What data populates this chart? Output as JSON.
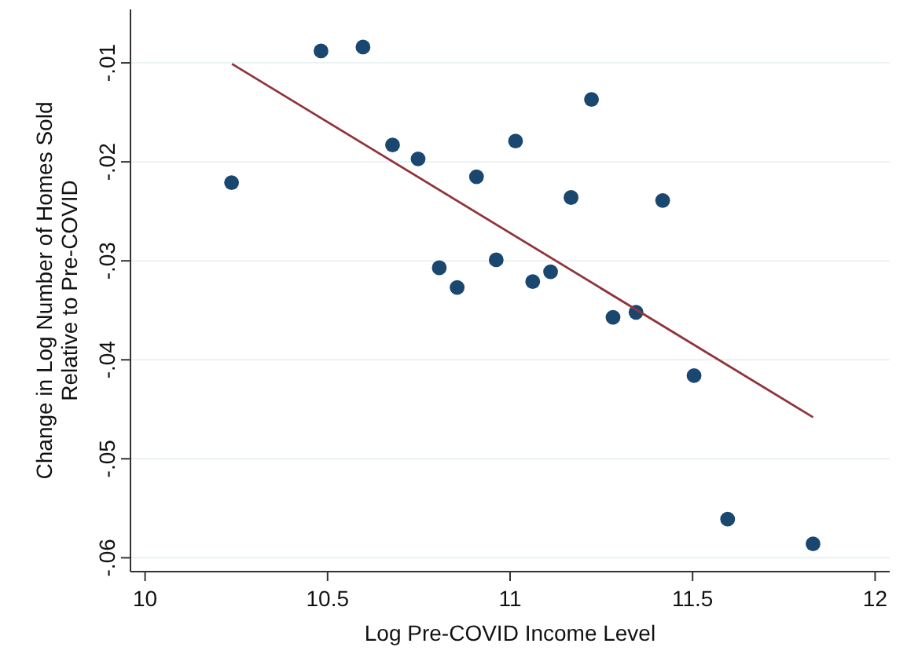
{
  "chart_data": {
    "type": "scatter",
    "xlabel": "Log Pre-COVID Income Level",
    "ylabel": "Change in Log Number of Homes Sold\nRelative to Pre-COVID",
    "xlim": [
      9.96,
      12.04
    ],
    "ylim": [
      -0.0614,
      -0.0046
    ],
    "xticks": [
      10,
      10.5,
      11,
      11.5,
      12
    ],
    "yticks": [
      {
        "value": -0.06,
        "label": "-.06"
      },
      {
        "value": -0.05,
        "label": "-.05"
      },
      {
        "value": -0.04,
        "label": "-.04"
      },
      {
        "value": -0.03,
        "label": "-.03"
      },
      {
        "value": -0.02,
        "label": "-.02"
      },
      {
        "value": -0.01,
        "label": "-.01"
      }
    ],
    "grid": "y",
    "marker": "circle",
    "series": [
      {
        "color": "#1a476f",
        "x": [
          10.237,
          10.482,
          10.597,
          10.678,
          10.748,
          10.908,
          11.015,
          10.806,
          10.855,
          10.962,
          11.062,
          11.111,
          11.167,
          11.223,
          11.282,
          11.345,
          11.418,
          11.504,
          11.596,
          11.83
        ],
        "values": [
          -0.0221,
          -0.0088,
          -0.0084,
          -0.0183,
          -0.0197,
          -0.0215,
          -0.0179,
          -0.0307,
          -0.0327,
          -0.0299,
          -0.0321,
          -0.0311,
          -0.0236,
          -0.0137,
          -0.0357,
          -0.0352,
          -0.0239,
          -0.0416,
          -0.0561,
          -0.0586
        ]
      },
      {
        "type": "line",
        "color": "#90353b",
        "marker": "none",
        "x": [
          10.238,
          11.83
        ],
        "values": [
          -0.0101,
          -0.0458
        ]
      }
    ]
  }
}
